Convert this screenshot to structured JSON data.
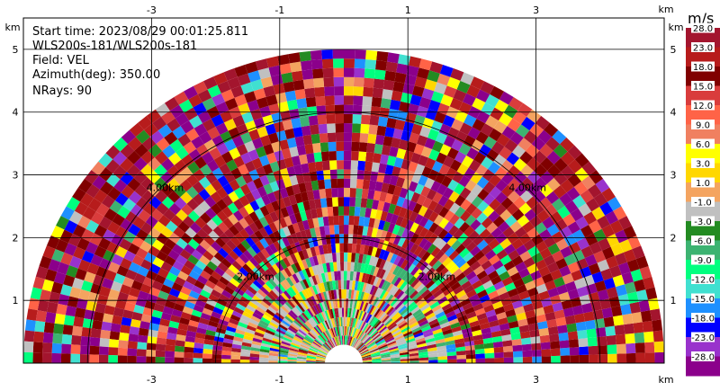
{
  "info": {
    "start_time": "Start time: 2023/08/29 00:01:25.811",
    "instrument": "WLS200s-181/WLS200s-181",
    "field": "Field: VEL",
    "azimuth": "Azimuth(deg): 350.00",
    "nrays": "NRays: 90"
  },
  "chart_data": {
    "type": "heatmap",
    "projection": "polar-half-plane (RHI-style sector scan)",
    "x_unit": "km",
    "y_unit": "km",
    "xlim": [
      -5,
      5
    ],
    "ylim": [
      0,
      5.5
    ],
    "x_ticks": [
      "-3",
      "-1",
      "1",
      "3"
    ],
    "y_ticks": [
      "1",
      "2",
      "3",
      "4",
      "5"
    ],
    "max_range_km": 5.0,
    "range_ring_labels": [
      "2.00km",
      "4.00km"
    ],
    "colorbar": {
      "unit": "m/s",
      "labels": [
        "28.0",
        "23.0",
        "18.0",
        "15.0",
        "12.0",
        "9.0",
        "6.0",
        "3.0",
        "1.0",
        "-1.0",
        "-3.0",
        "-6.0",
        "-9.0",
        "-12.0",
        "-15.0",
        "-18.0",
        "-23.0",
        "-28.0"
      ],
      "colors": [
        "#a3152e",
        "#b71c1c",
        "#800000",
        "#d93c3c",
        "#ff6347",
        "#f08060",
        "#ffff00",
        "#ffd700",
        "#f4a460",
        "#c0c0c0",
        "#238b22",
        "#3cb371",
        "#00ff7f",
        "#40e0d0",
        "#1e90ff",
        "#0000ff",
        "#9932cc",
        "#8b008b"
      ]
    }
  }
}
